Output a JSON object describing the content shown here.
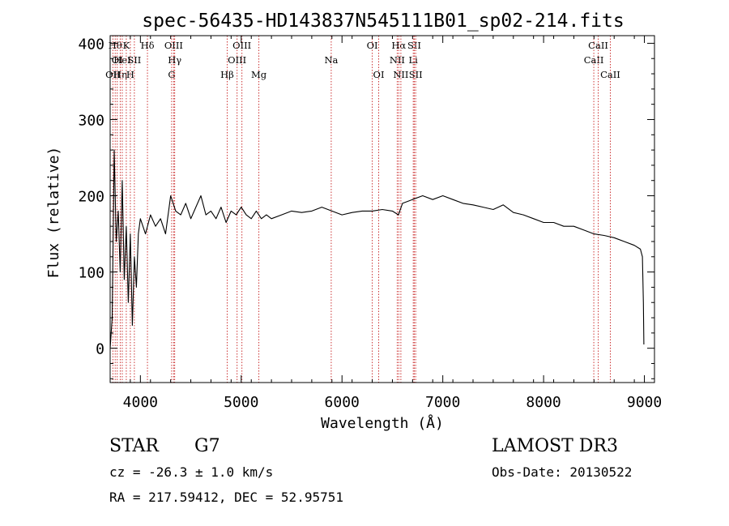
{
  "chart_data": {
    "type": "line",
    "title": "spec-56435-HD143837N545111B01_sp02-214.fits",
    "xlabel": "Wavelength (Å)",
    "ylabel": "Flux (relative)",
    "xlim": [
      3700,
      9100
    ],
    "ylim": [
      -45,
      410
    ],
    "x_ticks": [
      4000,
      5000,
      6000,
      7000,
      8000,
      9000
    ],
    "x_tick_labels": [
      "4000",
      "5000",
      "6000",
      "7000",
      "8000",
      "9000"
    ],
    "y_ticks": [
      0,
      100,
      200,
      300,
      400
    ],
    "y_tick_labels": [
      "0",
      "100",
      "200",
      "300",
      "400"
    ],
    "line_color": "#000000",
    "marker_color": "#cc3333",
    "spectrum": {
      "name": "flux",
      "x": [
        3700,
        3720,
        3740,
        3760,
        3780,
        3800,
        3820,
        3840,
        3860,
        3880,
        3900,
        3920,
        3940,
        3960,
        3980,
        4000,
        4050,
        4100,
        4150,
        4200,
        4250,
        4300,
        4350,
        4400,
        4450,
        4500,
        4550,
        4600,
        4650,
        4700,
        4750,
        4800,
        4850,
        4900,
        4950,
        5000,
        5050,
        5100,
        5150,
        5200,
        5250,
        5300,
        5400,
        5500,
        5600,
        5700,
        5800,
        5900,
        6000,
        6100,
        6200,
        6300,
        6400,
        6500,
        6560,
        6600,
        6700,
        6800,
        6900,
        7000,
        7100,
        7200,
        7300,
        7400,
        7500,
        7600,
        7700,
        7800,
        7900,
        8000,
        8100,
        8200,
        8300,
        8400,
        8500,
        8600,
        8700,
        8800,
        8900,
        8960,
        8980,
        8990,
        8995
      ],
      "y": [
        0,
        40,
        260,
        140,
        180,
        100,
        220,
        90,
        160,
        60,
        150,
        30,
        120,
        80,
        150,
        170,
        150,
        175,
        160,
        170,
        150,
        200,
        180,
        175,
        190,
        170,
        185,
        200,
        175,
        180,
        170,
        185,
        165,
        180,
        175,
        185,
        175,
        170,
        180,
        170,
        175,
        170,
        175,
        180,
        178,
        180,
        185,
        180,
        175,
        178,
        180,
        180,
        182,
        180,
        175,
        190,
        195,
        200,
        195,
        200,
        195,
        190,
        188,
        185,
        182,
        188,
        178,
        175,
        170,
        165,
        165,
        160,
        160,
        155,
        150,
        148,
        145,
        140,
        135,
        130,
        120,
        60,
        5
      ]
    },
    "lines": [
      {
        "wl": 3727,
        "label": "OII",
        "row": 2
      },
      {
        "wl": 3750,
        "label": "Hθ",
        "row": 0
      },
      {
        "wl": 3770,
        "label": "OI",
        "row": 1
      },
      {
        "wl": 3800,
        "label": "Hη",
        "row": 2
      },
      {
        "wl": 3820,
        "label": "HeI",
        "row": 1
      },
      {
        "wl": 3860,
        "label": "K",
        "row": 0
      },
      {
        "wl": 3900,
        "label": "H",
        "row": 2
      },
      {
        "wl": 3940,
        "label": "SII",
        "row": 1
      },
      {
        "wl": 4070,
        "label": "Hδ",
        "row": 0
      },
      {
        "wl": 4310,
        "label": "G",
        "row": 2
      },
      {
        "wl": 4330,
        "label": "OIII",
        "row": 0
      },
      {
        "wl": 4340,
        "label": "Hγ",
        "row": 1
      },
      {
        "wl": 4861,
        "label": "Hβ",
        "row": 2
      },
      {
        "wl": 4959,
        "label": "OIII",
        "row": 1
      },
      {
        "wl": 5007,
        "label": "OIII",
        "row": 0
      },
      {
        "wl": 5175,
        "label": "Mg",
        "row": 2
      },
      {
        "wl": 5893,
        "label": "Na",
        "row": 1
      },
      {
        "wl": 6300,
        "label": "OI",
        "row": 0
      },
      {
        "wl": 6364,
        "label": "OI",
        "row": 2
      },
      {
        "wl": 6548,
        "label": "NII",
        "row": 1
      },
      {
        "wl": 6563,
        "label": "Hα",
        "row": 0
      },
      {
        "wl": 6584,
        "label": "NII",
        "row": 2
      },
      {
        "wl": 6707,
        "label": "Li",
        "row": 1
      },
      {
        "wl": 6717,
        "label": "SII",
        "row": 0
      },
      {
        "wl": 6731,
        "label": "SII",
        "row": 2
      },
      {
        "wl": 8498,
        "label": "CaII",
        "row": 1
      },
      {
        "wl": 8542,
        "label": "CaII",
        "row": 0
      },
      {
        "wl": 8662,
        "label": "CaII",
        "row": 2
      }
    ]
  },
  "info": {
    "class_label": "STAR",
    "subclass": "G7",
    "redshift": "cz = -26.3 ± 1.0 km/s",
    "coords": "RA = 217.59412, DEC =  52.95751",
    "survey": "LAMOST DR3",
    "obs_date": "Obs-Date: 20130522"
  }
}
